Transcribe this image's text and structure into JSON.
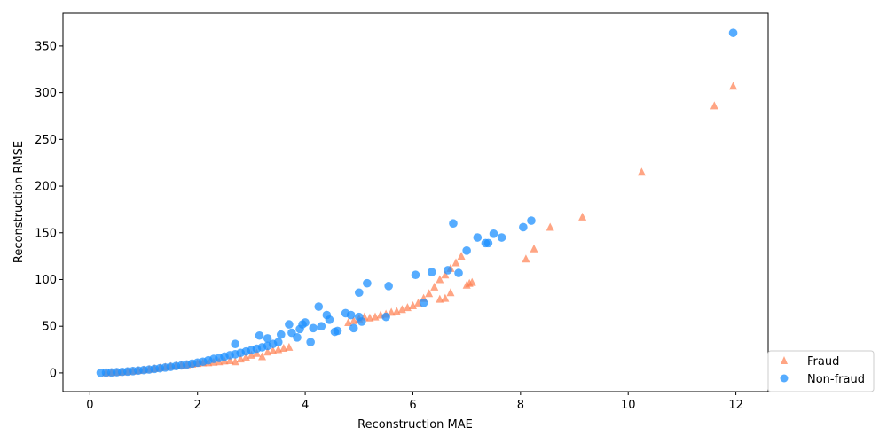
{
  "chart_data": {
    "type": "scatter",
    "xlabel": "Reconstruction MAE",
    "ylabel": "Reconstruction RMSE",
    "xlim": [
      -0.5,
      12.6
    ],
    "ylim": [
      -20,
      385
    ],
    "xticks": [
      0,
      2,
      4,
      6,
      8,
      10,
      12
    ],
    "yticks": [
      0,
      50,
      100,
      150,
      200,
      250,
      300,
      350
    ],
    "grid": false,
    "legend": {
      "position": "lower-right, outside plot"
    },
    "series": [
      {
        "name": "Fraud",
        "marker": "triangle",
        "color": "#ff7f50",
        "points": [
          [
            0.3,
            0.3
          ],
          [
            0.4,
            0.5
          ],
          [
            0.5,
            0.8
          ],
          [
            0.6,
            1.2
          ],
          [
            0.7,
            1.6
          ],
          [
            0.8,
            2.1
          ],
          [
            0.9,
            2.7
          ],
          [
            1.0,
            3.3
          ],
          [
            1.1,
            4.0
          ],
          [
            1.2,
            4.7
          ],
          [
            1.3,
            5.5
          ],
          [
            1.4,
            6.3
          ],
          [
            1.5,
            7.0
          ],
          [
            1.6,
            7.6
          ],
          [
            1.7,
            8.2
          ],
          [
            1.8,
            8.8
          ],
          [
            1.9,
            9.5
          ],
          [
            2.0,
            10.2
          ],
          [
            2.1,
            10.8
          ],
          [
            2.2,
            11.0
          ],
          [
            2.3,
            11.5
          ],
          [
            2.4,
            12.0
          ],
          [
            2.5,
            12.8
          ],
          [
            2.6,
            13.2
          ],
          [
            2.7,
            12.0
          ],
          [
            2.8,
            15.0
          ],
          [
            2.9,
            17.0
          ],
          [
            3.0,
            19.0
          ],
          [
            3.1,
            21.0
          ],
          [
            3.2,
            17.5
          ],
          [
            3.3,
            22.5
          ],
          [
            3.4,
            24.0
          ],
          [
            3.5,
            25.0
          ],
          [
            3.6,
            26.5
          ],
          [
            3.7,
            27.5
          ],
          [
            4.8,
            54
          ],
          [
            4.9,
            56
          ],
          [
            5.0,
            58
          ],
          [
            5.1,
            60
          ],
          [
            5.2,
            59
          ],
          [
            5.3,
            60
          ],
          [
            5.4,
            62
          ],
          [
            5.5,
            63
          ],
          [
            5.6,
            65
          ],
          [
            5.7,
            66
          ],
          [
            5.8,
            68
          ],
          [
            5.9,
            70
          ],
          [
            6.0,
            72
          ],
          [
            6.1,
            75
          ],
          [
            6.2,
            80
          ],
          [
            6.3,
            85
          ],
          [
            6.4,
            92
          ],
          [
            6.5,
            100
          ],
          [
            6.6,
            105
          ],
          [
            6.7,
            112
          ],
          [
            6.8,
            118
          ],
          [
            6.9,
            125
          ],
          [
            6.5,
            79
          ],
          [
            6.6,
            80
          ],
          [
            6.7,
            86
          ],
          [
            7.0,
            94
          ],
          [
            7.05,
            96
          ],
          [
            7.1,
            97
          ],
          [
            8.1,
            122
          ],
          [
            8.25,
            133
          ],
          [
            8.55,
            156
          ],
          [
            9.15,
            167
          ],
          [
            10.25,
            215
          ],
          [
            11.6,
            286
          ],
          [
            11.95,
            307
          ]
        ]
      },
      {
        "name": "Non-fraud",
        "marker": "circle",
        "color": "#1e90ff",
        "points": [
          [
            0.2,
            0.1
          ],
          [
            0.3,
            0.3
          ],
          [
            0.4,
            0.5
          ],
          [
            0.5,
            0.8
          ],
          [
            0.6,
            1.1
          ],
          [
            0.7,
            1.5
          ],
          [
            0.8,
            2.0
          ],
          [
            0.9,
            2.5
          ],
          [
            1.0,
            3.0
          ],
          [
            1.1,
            3.6
          ],
          [
            1.2,
            4.3
          ],
          [
            1.3,
            5.0
          ],
          [
            1.4,
            5.8
          ],
          [
            1.5,
            6.5
          ],
          [
            1.6,
            7.3
          ],
          [
            1.7,
            8.0
          ],
          [
            1.8,
            9.0
          ],
          [
            1.9,
            10.0
          ],
          [
            2.0,
            11.0
          ],
          [
            2.1,
            12.0
          ],
          [
            2.2,
            13.5
          ],
          [
            2.3,
            15.0
          ],
          [
            2.4,
            16.0
          ],
          [
            2.5,
            17.5
          ],
          [
            2.6,
            19.0
          ],
          [
            2.7,
            20.0
          ],
          [
            2.8,
            21.5
          ],
          [
            2.9,
            23.0
          ],
          [
            3.0,
            24.5
          ],
          [
            3.1,
            26.0
          ],
          [
            3.2,
            27.5
          ],
          [
            3.3,
            29.0
          ],
          [
            3.4,
            31.0
          ],
          [
            3.5,
            33.0
          ],
          [
            2.7,
            31
          ],
          [
            3.15,
            40
          ],
          [
            3.3,
            37
          ],
          [
            3.55,
            41
          ],
          [
            3.7,
            52
          ],
          [
            3.75,
            43
          ],
          [
            3.85,
            38
          ],
          [
            3.9,
            47
          ],
          [
            3.95,
            52
          ],
          [
            4.0,
            54
          ],
          [
            4.1,
            33
          ],
          [
            4.15,
            48
          ],
          [
            4.25,
            71
          ],
          [
            4.3,
            50
          ],
          [
            4.4,
            62
          ],
          [
            4.45,
            57
          ],
          [
            4.55,
            44
          ],
          [
            4.6,
            45
          ],
          [
            4.75,
            64
          ],
          [
            4.85,
            62
          ],
          [
            4.9,
            48
          ],
          [
            5.0,
            60
          ],
          [
            5.0,
            86
          ],
          [
            5.05,
            55
          ],
          [
            5.15,
            96
          ],
          [
            5.5,
            60
          ],
          [
            5.55,
            93
          ],
          [
            6.05,
            105
          ],
          [
            6.2,
            75
          ],
          [
            6.35,
            108
          ],
          [
            6.65,
            110
          ],
          [
            6.75,
            160
          ],
          [
            6.85,
            107
          ],
          [
            7.0,
            131
          ],
          [
            7.2,
            145
          ],
          [
            7.35,
            139
          ],
          [
            7.4,
            139
          ],
          [
            7.5,
            149
          ],
          [
            7.65,
            145
          ],
          [
            8.05,
            156
          ],
          [
            8.2,
            163
          ],
          [
            11.95,
            364
          ]
        ]
      }
    ]
  }
}
